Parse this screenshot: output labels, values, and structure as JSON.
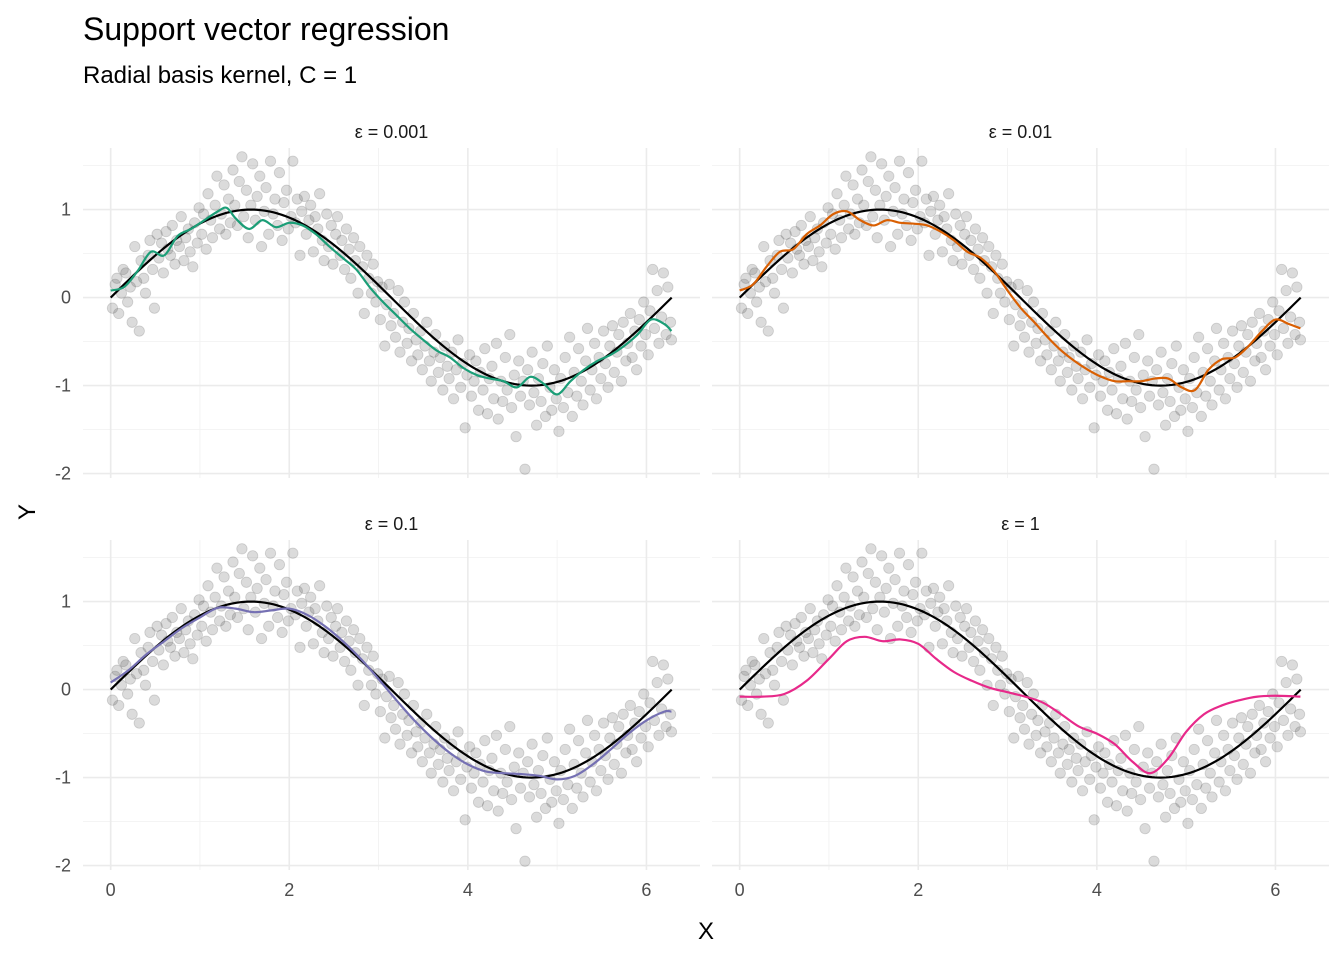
{
  "title": "Support vector regression",
  "subtitle": "Radial basis kernel, C = 1",
  "chart_data": {
    "type": "scatter",
    "title": "Support vector regression",
    "subtitle": "Radial basis kernel, C = 1",
    "xlabel": "X",
    "ylabel": "Y",
    "xlim": [
      -0.31,
      6.6
    ],
    "ylim": [
      -2.05,
      1.7
    ],
    "x_ticks": [
      0,
      2,
      4,
      6
    ],
    "x_tick_labels": [
      "0",
      "2",
      "4",
      "6"
    ],
    "y_ticks": [
      -2,
      -1,
      0,
      1
    ],
    "y_tick_labels": [
      "-2",
      "-1",
      "0",
      "1"
    ],
    "grid": true,
    "legend": "none",
    "truth_line": {
      "function": "sin(x)",
      "x_range": [
        0,
        6.283
      ],
      "color": "#000000"
    },
    "points": [
      [
        0.02,
        -0.12
      ],
      [
        0.05,
        0.15
      ],
      [
        0.07,
        0.22
      ],
      [
        0.09,
        -0.18
      ],
      [
        0.12,
        0.05
      ],
      [
        0.14,
        0.32
      ],
      [
        0.17,
        0.28
      ],
      [
        0.19,
        -0.05
      ],
      [
        0.22,
        0.12
      ],
      [
        0.24,
        -0.28
      ],
      [
        0.27,
        0.58
      ],
      [
        0.29,
        0.18
      ],
      [
        0.32,
        -0.38
      ],
      [
        0.34,
        0.42
      ],
      [
        0.37,
        0.22
      ],
      [
        0.39,
        0.05
      ],
      [
        0.42,
        0.48
      ],
      [
        0.44,
        0.65
      ],
      [
        0.47,
        0.32
      ],
      [
        0.49,
        -0.12
      ],
      [
        0.52,
        0.72
      ],
      [
        0.54,
        0.45
      ],
      [
        0.57,
        0.62
      ],
      [
        0.59,
        0.28
      ],
      [
        0.62,
        0.75
      ],
      [
        0.64,
        0.55
      ],
      [
        0.67,
        0.48
      ],
      [
        0.69,
        0.82
      ],
      [
        0.72,
        0.38
      ],
      [
        0.74,
        0.65
      ],
      [
        0.77,
        0.58
      ],
      [
        0.79,
        0.92
      ],
      [
        0.82,
        0.42
      ],
      [
        0.84,
        0.68
      ],
      [
        0.87,
        0.78
      ],
      [
        0.89,
        0.52
      ],
      [
        0.92,
        0.35
      ],
      [
        0.94,
        0.85
      ],
      [
        0.97,
        0.62
      ],
      [
        0.99,
        1.02
      ],
      [
        1.02,
        0.72
      ],
      [
        1.04,
        0.95
      ],
      [
        1.07,
        0.55
      ],
      [
        1.09,
        1.18
      ],
      [
        1.12,
        0.88
      ],
      [
        1.14,
        0.68
      ],
      [
        1.17,
        1.05
      ],
      [
        1.19,
        1.38
      ],
      [
        1.22,
        0.78
      ],
      [
        1.24,
        0.95
      ],
      [
        1.27,
        1.28
      ],
      [
        1.29,
        0.72
      ],
      [
        1.32,
        1.12
      ],
      [
        1.34,
        0.85
      ],
      [
        1.37,
        1.45
      ],
      [
        1.39,
        1.05
      ],
      [
        1.42,
        0.82
      ],
      [
        1.44,
        1.32
      ],
      [
        1.47,
        1.6
      ],
      [
        1.49,
        0.92
      ],
      [
        1.52,
        1.22
      ],
      [
        1.54,
        0.68
      ],
      [
        1.57,
        1.05
      ],
      [
        1.59,
        1.52
      ],
      [
        1.62,
        0.88
      ],
      [
        1.64,
        1.15
      ],
      [
        1.67,
        1.38
      ],
      [
        1.69,
        0.58
      ],
      [
        1.72,
        0.98
      ],
      [
        1.74,
        1.25
      ],
      [
        1.77,
        0.72
      ],
      [
        1.79,
        1.55
      ],
      [
        1.82,
        0.95
      ],
      [
        1.84,
        1.12
      ],
      [
        1.87,
        0.82
      ],
      [
        1.89,
        1.42
      ],
      [
        1.92,
        0.65
      ],
      [
        1.94,
        1.08
      ],
      [
        1.97,
        1.22
      ],
      [
        1.99,
        0.78
      ],
      [
        2.02,
        0.92
      ],
      [
        2.04,
        1.55
      ],
      [
        2.07,
        0.85
      ],
      [
        2.09,
        1.12
      ],
      [
        2.12,
        0.48
      ],
      [
        2.14,
        0.98
      ],
      [
        2.17,
        1.15
      ],
      [
        2.19,
        0.72
      ],
      [
        2.22,
        0.88
      ],
      [
        2.24,
        1.05
      ],
      [
        2.27,
        0.52
      ],
      [
        2.29,
        0.92
      ],
      [
        2.32,
        0.78
      ],
      [
        2.34,
        1.18
      ],
      [
        2.37,
        0.65
      ],
      [
        2.39,
        0.42
      ],
      [
        2.42,
        0.95
      ],
      [
        2.44,
        0.58
      ],
      [
        2.47,
        0.82
      ],
      [
        2.49,
        0.38
      ],
      [
        2.52,
        0.72
      ],
      [
        2.54,
        0.92
      ],
      [
        2.57,
        0.48
      ],
      [
        2.59,
        0.65
      ],
      [
        2.62,
        0.32
      ],
      [
        2.64,
        0.78
      ],
      [
        2.67,
        0.55
      ],
      [
        2.69,
        0.22
      ],
      [
        2.72,
        0.68
      ],
      [
        2.74,
        0.42
      ],
      [
        2.77,
        0.05
      ],
      [
        2.79,
        0.58
      ],
      [
        2.82,
        0.35
      ],
      [
        2.84,
        -0.18
      ],
      [
        2.87,
        0.48
      ],
      [
        2.89,
        0.22
      ],
      [
        2.92,
        0.05
      ],
      [
        2.94,
        0.38
      ],
      [
        2.97,
        -0.05
      ],
      [
        2.99,
        0.18
      ],
      [
        3.02,
        -0.25
      ],
      [
        3.04,
        0.12
      ],
      [
        3.07,
        -0.55
      ],
      [
        3.09,
        -0.08
      ],
      [
        3.12,
        0.15
      ],
      [
        3.14,
        -0.32
      ],
      [
        3.17,
        -0.18
      ],
      [
        3.19,
        -0.45
      ],
      [
        3.22,
        0.08
      ],
      [
        3.24,
        -0.62
      ],
      [
        3.27,
        -0.28
      ],
      [
        3.29,
        -0.05
      ],
      [
        3.32,
        -0.52
      ],
      [
        3.34,
        -0.35
      ],
      [
        3.37,
        -0.72
      ],
      [
        3.39,
        -0.18
      ],
      [
        3.42,
        -0.48
      ],
      [
        3.44,
        -0.65
      ],
      [
        3.47,
        -0.38
      ],
      [
        3.49,
        -0.82
      ],
      [
        3.52,
        -0.55
      ],
      [
        3.54,
        -0.28
      ],
      [
        3.57,
        -0.72
      ],
      [
        3.59,
        -0.95
      ],
      [
        3.62,
        -0.62
      ],
      [
        3.64,
        -0.42
      ],
      [
        3.67,
        -0.85
      ],
      [
        3.69,
        -0.68
      ],
      [
        3.72,
        -1.05
      ],
      [
        3.74,
        -0.55
      ],
      [
        3.77,
        -0.78
      ],
      [
        3.79,
        -0.92
      ],
      [
        3.82,
        -0.62
      ],
      [
        3.84,
        -1.15
      ],
      [
        3.87,
        -0.82
      ],
      [
        3.89,
        -0.48
      ],
      [
        3.92,
        -1.02
      ],
      [
        3.94,
        -0.75
      ],
      [
        3.97,
        -1.48
      ],
      [
        3.99,
        -0.88
      ],
      [
        4.02,
        -0.65
      ],
      [
        4.04,
        -1.12
      ],
      [
        4.07,
        -0.95
      ],
      [
        4.09,
        -0.72
      ],
      [
        4.12,
        -1.28
      ],
      [
        4.14,
        -0.85
      ],
      [
        4.17,
        -1.05
      ],
      [
        4.19,
        -0.58
      ],
      [
        4.22,
        -1.32
      ],
      [
        4.24,
        -0.92
      ],
      [
        4.27,
        -0.78
      ],
      [
        4.29,
        -1.15
      ],
      [
        4.32,
        -0.52
      ],
      [
        4.34,
        -1.38
      ],
      [
        4.37,
        -0.95
      ],
      [
        4.39,
        -1.18
      ],
      [
        4.42,
        -0.68
      ],
      [
        4.44,
        -1.05
      ],
      [
        4.47,
        -0.42
      ],
      [
        4.49,
        -1.25
      ],
      [
        4.52,
        -0.88
      ],
      [
        4.54,
        -1.58
      ],
      [
        4.57,
        -0.72
      ],
      [
        4.59,
        -1.12
      ],
      [
        4.62,
        -0.95
      ],
      [
        4.64,
        -1.95
      ],
      [
        4.67,
        -0.82
      ],
      [
        4.69,
        -1.22
      ],
      [
        4.72,
        -0.62
      ],
      [
        4.74,
        -1.08
      ],
      [
        4.77,
        -1.45
      ],
      [
        4.79,
        -0.92
      ],
      [
        4.82,
        -1.18
      ],
      [
        4.84,
        -0.75
      ],
      [
        4.87,
        -1.35
      ],
      [
        4.89,
        -0.55
      ],
      [
        4.92,
        -1.02
      ],
      [
        4.94,
        -1.28
      ],
      [
        4.97,
        -0.82
      ],
      [
        4.99,
        -1.15
      ],
      [
        5.02,
        -1.52
      ],
      [
        5.04,
        -0.92
      ],
      [
        5.07,
        -1.25
      ],
      [
        5.09,
        -0.68
      ],
      [
        5.12,
        -1.08
      ],
      [
        5.14,
        -0.45
      ],
      [
        5.17,
        -1.35
      ],
      [
        5.19,
        -0.85
      ],
      [
        5.22,
        -1.12
      ],
      [
        5.24,
        -0.58
      ],
      [
        5.27,
        -0.95
      ],
      [
        5.29,
        -1.22
      ],
      [
        5.32,
        -0.72
      ],
      [
        5.34,
        -0.35
      ],
      [
        5.37,
        -1.05
      ],
      [
        5.39,
        -0.82
      ],
      [
        5.42,
        -0.52
      ],
      [
        5.44,
        -1.15
      ],
      [
        5.47,
        -0.68
      ],
      [
        5.49,
        -0.92
      ],
      [
        5.52,
        -0.38
      ],
      [
        5.54,
        -0.75
      ],
      [
        5.57,
        -1.02
      ],
      [
        5.59,
        -0.55
      ],
      [
        5.62,
        -0.32
      ],
      [
        5.64,
        -0.85
      ],
      [
        5.67,
        -0.62
      ],
      [
        5.69,
        -0.42
      ],
      [
        5.72,
        -0.95
      ],
      [
        5.74,
        -0.28
      ],
      [
        5.77,
        -0.72
      ],
      [
        5.79,
        -0.52
      ],
      [
        5.82,
        -0.18
      ],
      [
        5.84,
        -0.68
      ],
      [
        5.87,
        -0.38
      ],
      [
        5.89,
        -0.82
      ],
      [
        5.92,
        -0.25
      ],
      [
        5.94,
        -0.55
      ],
      [
        5.97,
        -0.05
      ],
      [
        5.99,
        -0.42
      ],
      [
        6.02,
        -0.65
      ],
      [
        6.04,
        -0.15
      ],
      [
        6.07,
        0.32
      ],
      [
        6.09,
        -0.35
      ],
      [
        6.12,
        0.08
      ],
      [
        6.14,
        -0.52
      ],
      [
        6.17,
        -0.22
      ],
      [
        6.19,
        0.28
      ],
      [
        6.22,
        -0.42
      ],
      [
        6.24,
        0.12
      ],
      [
        6.27,
        -0.28
      ],
      [
        6.28,
        -0.48
      ]
    ],
    "panels": [
      {
        "strip": "ε = 0.001",
        "color": "#1b9e77",
        "fit_x": [
          0.0,
          0.15,
          0.3,
          0.45,
          0.6,
          0.75,
          0.9,
          1.05,
          1.2,
          1.3,
          1.4,
          1.55,
          1.7,
          1.85,
          2.0,
          2.15,
          2.3,
          2.45,
          2.6,
          2.75,
          2.9,
          3.05,
          3.2,
          3.35,
          3.5,
          3.65,
          3.8,
          3.95,
          4.1,
          4.25,
          4.4,
          4.55,
          4.7,
          4.85,
          5.0,
          5.15,
          5.3,
          5.45,
          5.6,
          5.75,
          5.9,
          6.05,
          6.2,
          6.28
        ],
        "fit_y": [
          0.08,
          0.12,
          0.3,
          0.52,
          0.48,
          0.7,
          0.78,
          0.88,
          0.98,
          1.02,
          0.9,
          0.78,
          0.88,
          0.8,
          0.85,
          0.82,
          0.72,
          0.58,
          0.45,
          0.32,
          0.12,
          -0.05,
          -0.2,
          -0.35,
          -0.48,
          -0.6,
          -0.68,
          -0.8,
          -0.88,
          -0.92,
          -0.95,
          -1.02,
          -0.9,
          -0.98,
          -1.1,
          -0.95,
          -0.82,
          -0.72,
          -0.65,
          -0.55,
          -0.42,
          -0.25,
          -0.3,
          -0.38
        ]
      },
      {
        "strip": "ε = 0.01",
        "color": "#d95f02",
        "fit_x": [
          0.0,
          0.15,
          0.3,
          0.45,
          0.6,
          0.75,
          0.9,
          1.05,
          1.2,
          1.35,
          1.5,
          1.65,
          1.8,
          1.95,
          2.1,
          2.25,
          2.4,
          2.55,
          2.7,
          2.85,
          3.0,
          3.15,
          3.3,
          3.45,
          3.6,
          3.75,
          3.9,
          4.05,
          4.2,
          4.35,
          4.5,
          4.65,
          4.8,
          4.95,
          5.1,
          5.25,
          5.4,
          5.55,
          5.7,
          5.85,
          6.0,
          6.15,
          6.28
        ],
        "fit_y": [
          0.08,
          0.15,
          0.35,
          0.52,
          0.55,
          0.72,
          0.82,
          0.95,
          0.98,
          0.88,
          0.82,
          0.88,
          0.85,
          0.84,
          0.82,
          0.75,
          0.65,
          0.52,
          0.45,
          0.3,
          0.08,
          -0.12,
          -0.28,
          -0.45,
          -0.6,
          -0.72,
          -0.82,
          -0.9,
          -0.95,
          -0.95,
          -0.95,
          -0.92,
          -0.92,
          -1.02,
          -1.05,
          -0.82,
          -0.7,
          -0.68,
          -0.55,
          -0.38,
          -0.25,
          -0.3,
          -0.35
        ]
      },
      {
        "strip": "ε = 0.1",
        "color": "#7570b3",
        "fit_x": [
          0.0,
          0.2,
          0.4,
          0.6,
          0.8,
          1.0,
          1.2,
          1.4,
          1.6,
          1.8,
          2.0,
          2.2,
          2.4,
          2.6,
          2.8,
          3.0,
          3.2,
          3.4,
          3.6,
          3.8,
          4.0,
          4.2,
          4.4,
          4.6,
          4.8,
          5.0,
          5.2,
          5.4,
          5.6,
          5.8,
          6.0,
          6.2,
          6.28
        ],
        "fit_y": [
          0.08,
          0.22,
          0.4,
          0.55,
          0.7,
          0.82,
          0.93,
          0.92,
          0.88,
          0.9,
          0.92,
          0.85,
          0.72,
          0.55,
          0.35,
          0.12,
          -0.12,
          -0.35,
          -0.55,
          -0.72,
          -0.85,
          -0.93,
          -0.95,
          -0.96,
          -0.98,
          -1.02,
          -0.98,
          -0.85,
          -0.68,
          -0.5,
          -0.35,
          -0.25,
          -0.25
        ]
      },
      {
        "strip": "ε = 1",
        "color": "#e7298a",
        "fit_x": [
          0.0,
          0.25,
          0.5,
          0.75,
          1.0,
          1.2,
          1.4,
          1.6,
          1.8,
          2.0,
          2.2,
          2.4,
          2.6,
          2.8,
          3.0,
          3.2,
          3.4,
          3.6,
          3.8,
          4.0,
          4.2,
          4.4,
          4.6,
          4.8,
          5.0,
          5.2,
          5.4,
          5.6,
          5.8,
          6.0,
          6.28
        ],
        "fit_y": [
          -0.08,
          -0.08,
          -0.05,
          0.1,
          0.35,
          0.55,
          0.6,
          0.55,
          0.57,
          0.52,
          0.35,
          0.2,
          0.1,
          0.02,
          -0.03,
          -0.08,
          -0.15,
          -0.28,
          -0.42,
          -0.5,
          -0.62,
          -0.82,
          -0.95,
          -0.78,
          -0.48,
          -0.28,
          -0.18,
          -0.12,
          -0.08,
          -0.07,
          -0.08
        ]
      }
    ]
  }
}
